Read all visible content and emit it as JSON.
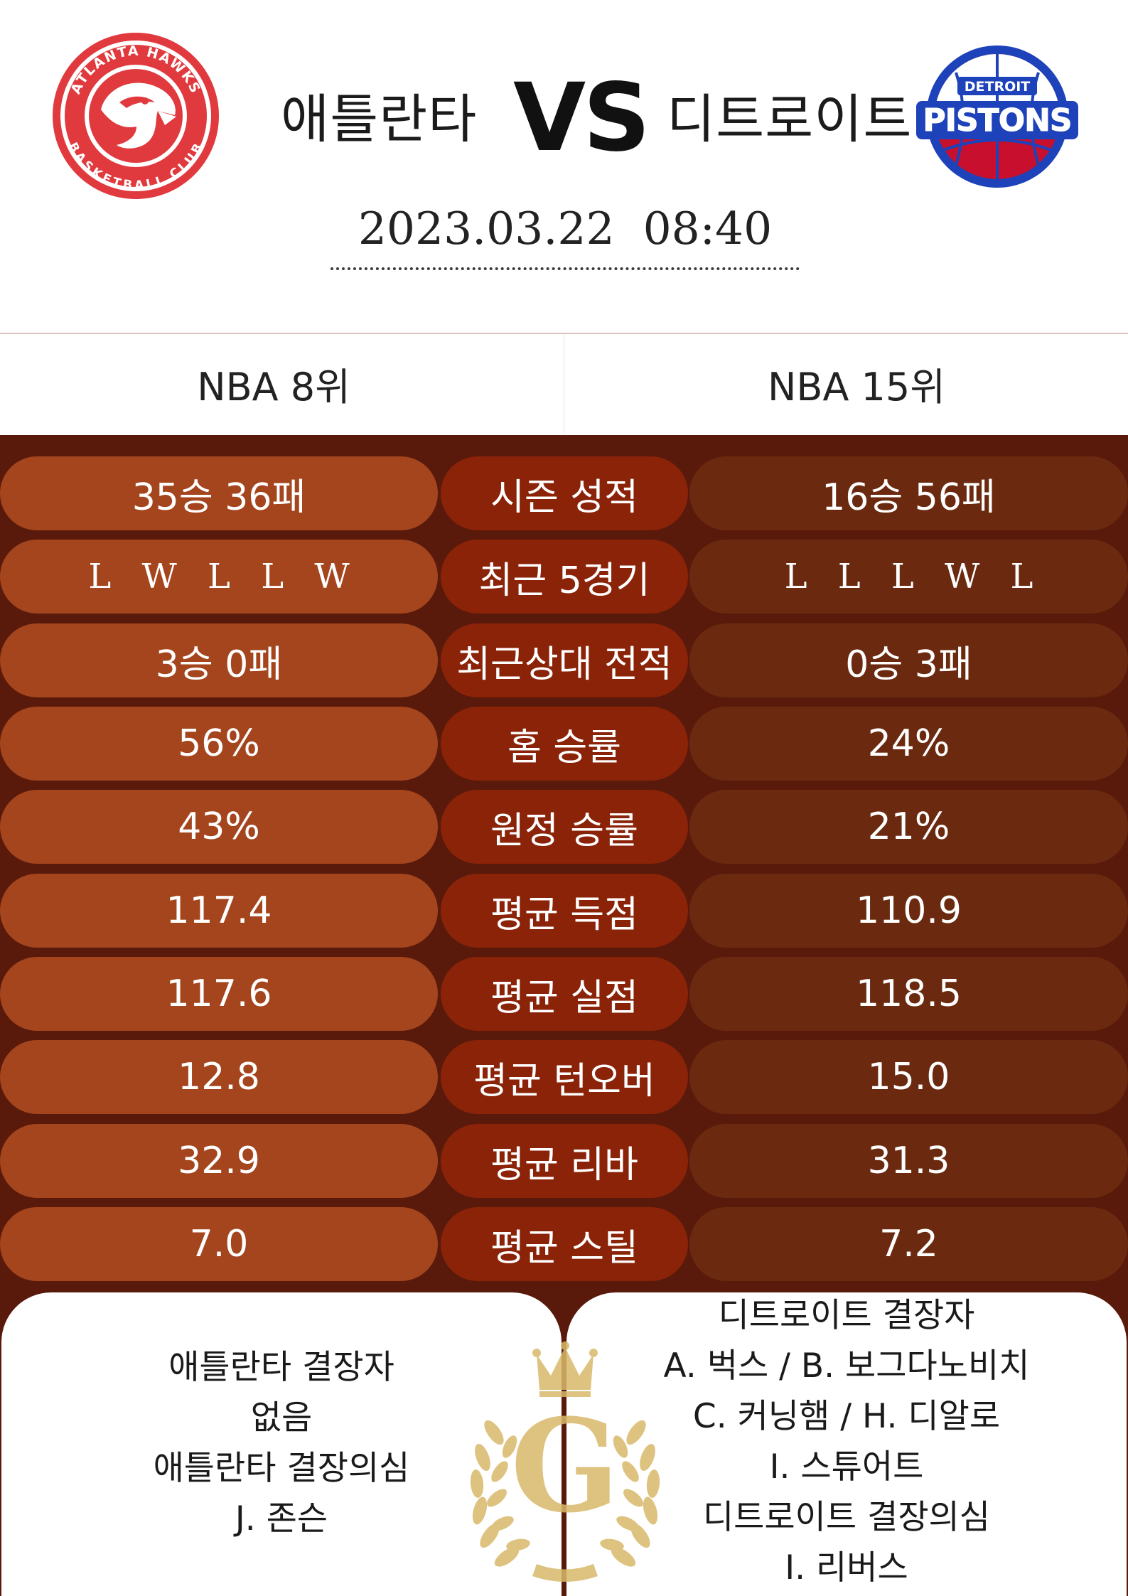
{
  "header": {
    "home_team": "애틀란타",
    "away_team": "디트로이트",
    "vs": "VS",
    "datetime": "2023.03.22  08:40",
    "home_logo_text": [
      "ATLANTA HAWKS",
      "BASKETBALL CLUB"
    ],
    "away_logo_text": [
      "DETROIT",
      "PISTONS"
    ]
  },
  "ranks": {
    "home": "NBA 8위",
    "away": "NBA 15위"
  },
  "stats": [
    {
      "home": "35승 36패",
      "label": "시즌 성적",
      "away": "16승 56패"
    },
    {
      "home": "L W L L W",
      "label": "최근 5경기",
      "away": "L L L W L"
    },
    {
      "home": "3승 0패",
      "label": "최근상대 전적",
      "away": "0승 3패"
    },
    {
      "home": "56%",
      "label": "홈 승률",
      "away": "24%"
    },
    {
      "home": "43%",
      "label": "원정 승률",
      "away": "21%"
    },
    {
      "home": "117.4",
      "label": "평균 득점",
      "away": "110.9"
    },
    {
      "home": "117.6",
      "label": "평균 실점",
      "away": "118.5"
    },
    {
      "home": "12.8",
      "label": "평균 턴오버",
      "away": "15.0"
    },
    {
      "home": "32.9",
      "label": "평균 리바",
      "away": "31.3"
    },
    {
      "home": "7.0",
      "label": "평균 스틸",
      "away": "7.2"
    }
  ],
  "absences": {
    "home": [
      "애틀란타 결장자",
      "없음",
      "애틀란타 결장의심",
      "J. 존슨"
    ],
    "away": [
      "디트로이트 결장자",
      "A. 벅스 / B. 보그다노비치",
      "C. 커닝햄 / H. 디알로",
      "I. 스튜어트",
      "디트로이트 결장의심",
      "I. 리버스"
    ]
  },
  "emblem_letter": "G",
  "colors": {
    "stats_bg": "#5a1a0b",
    "home_pill": "#a4451d",
    "label_pill": "#8a2308",
    "away_pill": "#6b2a0f",
    "hawks_red": "#e03a3e",
    "pistons_blue": "#1d42ba",
    "pistons_red": "#c8102e",
    "gold": "#d9b96a"
  }
}
